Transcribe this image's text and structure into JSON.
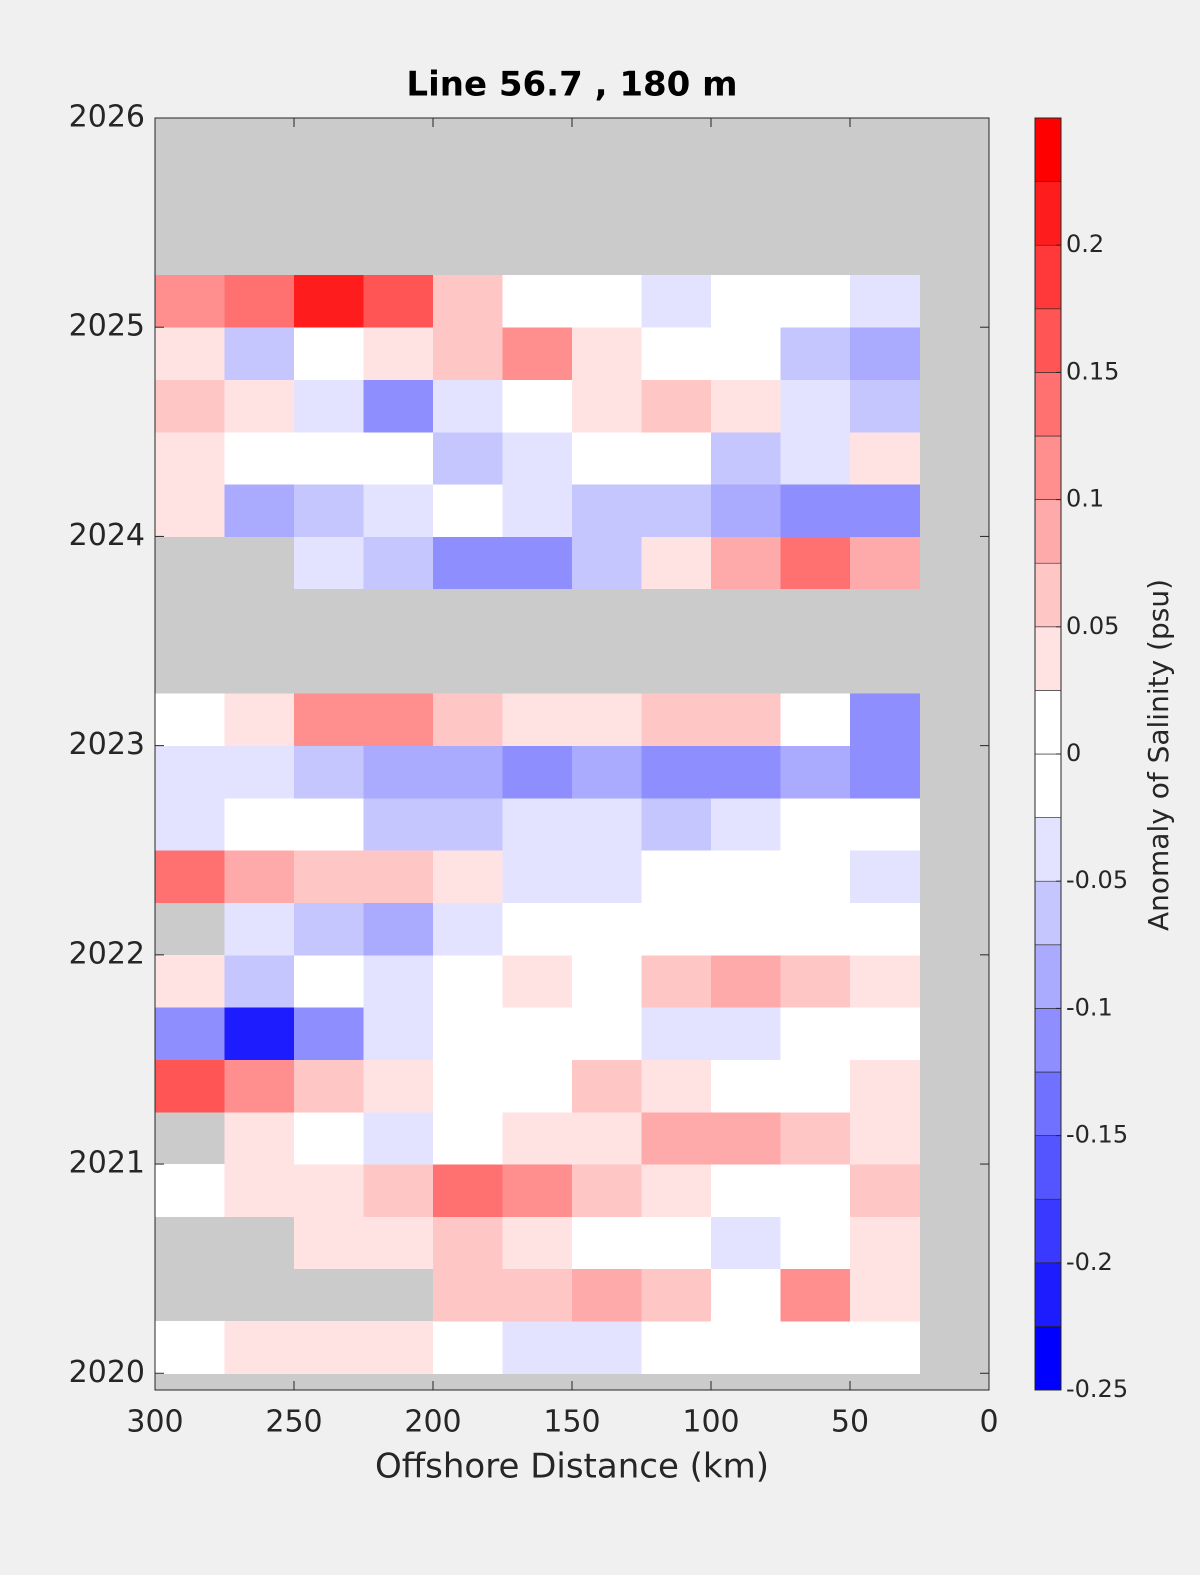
{
  "chart_data": {
    "type": "contour",
    "title": "Line 56.7 , 180 m",
    "x_label": "Offshore Distance (km)",
    "colorbar_label": "Anomaly of Salinity (psu)",
    "x": [
      287.5,
      262.5,
      237.5,
      212.5,
      187.5,
      162.5,
      137.5,
      112.5,
      87.5,
      62.5,
      37.5
    ],
    "y": [
      2020.125,
      2020.375,
      2020.625,
      2020.875,
      2021.125,
      2021.375,
      2021.625,
      2021.875,
      2022.125,
      2022.375,
      2022.625,
      2022.875,
      2023.125,
      2023.375,
      2023.625,
      2023.875,
      2024.125,
      2024.375,
      2024.625,
      2024.875,
      2025.125
    ],
    "z": [
      [
        0.0,
        0.03,
        0.04,
        0.03,
        0.0,
        -0.03,
        -0.03,
        -0.02,
        0.0,
        0.02,
        0.0
      ],
      [
        null,
        null,
        null,
        null,
        0.06,
        0.07,
        0.09,
        0.06,
        0.02,
        0.12,
        0.04
      ],
      [
        null,
        null,
        0.03,
        0.04,
        0.05,
        0.04,
        0.02,
        0.0,
        -0.03,
        0.02,
        0.04
      ],
      [
        0.0,
        0.03,
        0.04,
        0.06,
        0.13,
        0.12,
        0.06,
        0.03,
        0.0,
        0.02,
        0.05
      ],
      [
        null,
        0.04,
        0.02,
        -0.03,
        0.02,
        0.04,
        0.03,
        0.08,
        0.09,
        0.06,
        0.03
      ],
      [
        0.17,
        0.12,
        0.06,
        0.03,
        0.0,
        0.0,
        0.05,
        0.03,
        0.0,
        0.0,
        0.03
      ],
      [
        -0.12,
        -0.2,
        -0.1,
        -0.04,
        0.0,
        0.02,
        0.0,
        -0.03,
        -0.03,
        0.0,
        0.0
      ],
      [
        0.03,
        -0.07,
        0.0,
        -0.04,
        0.0,
        0.03,
        0.02,
        0.07,
        0.09,
        0.06,
        0.03
      ],
      [
        null,
        -0.04,
        -0.06,
        -0.08,
        -0.04,
        -0.02,
        0.0,
        0.0,
        0.0,
        0.0,
        0.0
      ],
      [
        0.15,
        0.08,
        0.05,
        0.06,
        0.04,
        -0.03,
        -0.03,
        0.0,
        0.0,
        0.0,
        -0.03
      ],
      [
        -0.03,
        0.0,
        0.0,
        -0.05,
        -0.07,
        -0.04,
        -0.03,
        -0.05,
        -0.04,
        0.0,
        0.0
      ],
      [
        -0.04,
        -0.04,
        -0.07,
        -0.09,
        -0.09,
        -0.1,
        -0.09,
        -0.1,
        -0.11,
        -0.09,
        -0.12
      ],
      [
        0.02,
        0.04,
        0.1,
        0.1,
        0.06,
        0.03,
        0.04,
        0.06,
        0.05,
        0.02,
        -0.1
      ],
      [
        null,
        null,
        null,
        null,
        null,
        null,
        null,
        null,
        null,
        null,
        null
      ],
      [
        null,
        null,
        null,
        null,
        null,
        null,
        null,
        null,
        null,
        null,
        null
      ],
      [
        null,
        null,
        -0.03,
        -0.05,
        -0.1,
        -0.12,
        -0.05,
        0.04,
        0.08,
        0.15,
        0.08
      ],
      [
        0.03,
        -0.08,
        -0.07,
        -0.03,
        0.0,
        -0.04,
        -0.05,
        -0.06,
        -0.08,
        -0.1,
        -0.12
      ],
      [
        0.04,
        0.02,
        0.0,
        0.0,
        -0.06,
        -0.04,
        0.0,
        -0.02,
        -0.05,
        -0.04,
        0.03
      ],
      [
        0.06,
        0.04,
        -0.04,
        -0.12,
        -0.03,
        0.0,
        0.03,
        0.06,
        0.04,
        -0.04,
        -0.05
      ],
      [
        0.03,
        -0.07,
        0.0,
        0.04,
        0.07,
        0.11,
        0.04,
        0.02,
        0.0,
        -0.06,
        -0.08
      ],
      [
        0.12,
        0.14,
        0.2,
        0.16,
        0.07,
        0.0,
        0.0,
        -0.03,
        0.02,
        0.0,
        -0.03
      ]
    ],
    "xlim": [
      300,
      0
    ],
    "xticks": [
      300,
      250,
      200,
      150,
      100,
      50,
      0
    ],
    "ylim": [
      2019.92,
      2026
    ],
    "yticks": [
      2020,
      2021,
      2022,
      2023,
      2024,
      2025,
      2026
    ],
    "clim": [
      -0.25,
      0.25
    ],
    "cticks": [
      -0.25,
      -0.2,
      -0.15,
      -0.1,
      -0.05,
      0,
      0.05,
      0.1,
      0.15,
      0.2
    ],
    "level_step": 0.025,
    "missing_color": "#cbcbcb"
  }
}
